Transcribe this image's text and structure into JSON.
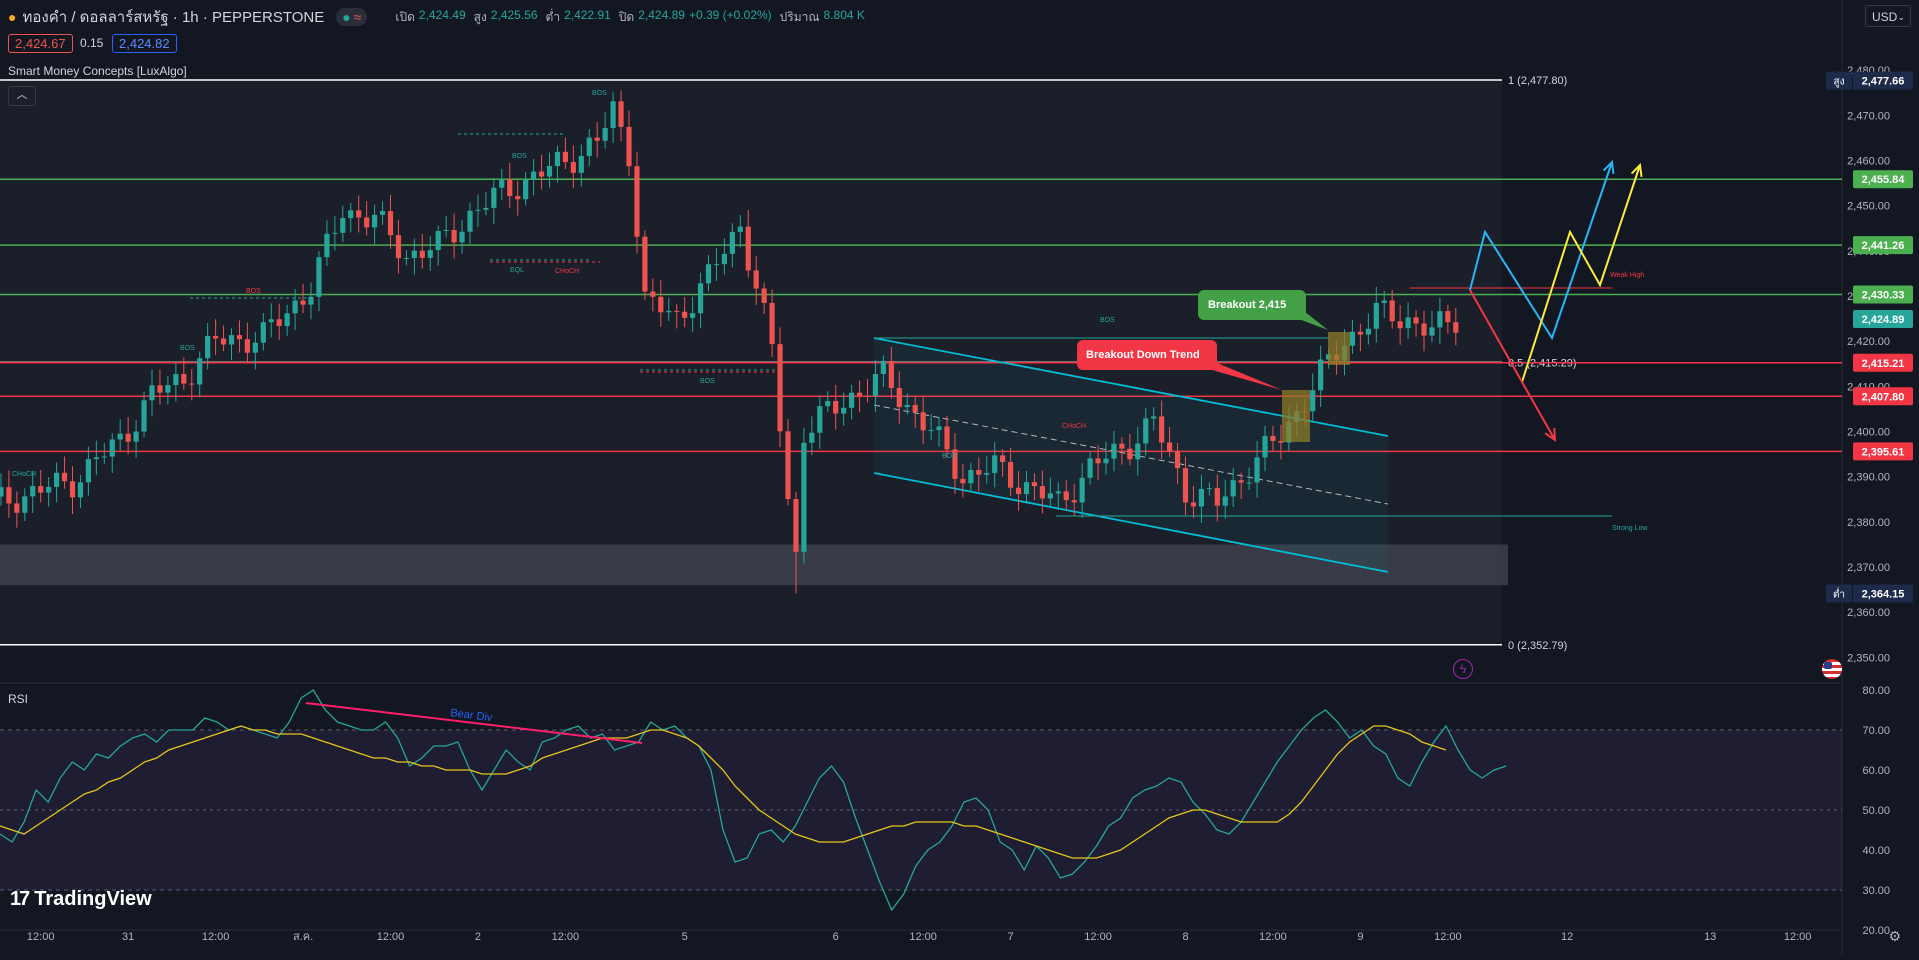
{
  "header": {
    "symbol_icon": "gold-coin-icon",
    "symbol": "ทองคำ / ดอลลาร์สหรัฐ · 1h · PEPPERSTONE",
    "status_icons": [
      "market-open-dot",
      "wave-icon"
    ],
    "open_label": "เปิด",
    "open_value": "2,424.49",
    "high_label": "สูง",
    "high_value": "2,425.56",
    "low_label": "ต่ำ",
    "low_value": "2,422.91",
    "close_label": "ปิด",
    "close_value": "2,424.89",
    "change": "+0.39 (+0.02%)",
    "volume_label": "ปริมาณ",
    "volume_value": "8.804 K"
  },
  "quote": {
    "sell": "2,424.67",
    "spread": "0.15",
    "buy": "2,424.82"
  },
  "currency": "USD",
  "indicator_title": "Smart Money Concepts [LuxAlgo]",
  "rsi_title": "RSI",
  "logo": "TradingView",
  "colors": {
    "background": "#131722",
    "up": "#26a69a",
    "down": "#ef5350",
    "hline_green": "#4caf50",
    "hline_red": "#f23645",
    "channel": "#00bcd4",
    "rsi": "#26a69a",
    "rsi_ma": "#e6c619"
  },
  "chart_data": [
    {
      "type": "candlestick",
      "ylim": [
        2345,
        2484
      ],
      "y_ticks": [
        "2,480.00",
        "2,470.00",
        "2,460.00",
        "2,450.00",
        "2,440.00",
        "2,430.00",
        "2,420.00",
        "2,410.00",
        "2,400.00",
        "2,390.00",
        "2,380.00",
        "2,370.00",
        "2,360.00",
        "2,350.00"
      ],
      "y_tick_values": [
        2480,
        2470,
        2460,
        2450,
        2440,
        2430,
        2420,
        2410,
        2400,
        2390,
        2380,
        2370,
        2360,
        2350
      ],
      "x_ticks": [
        "12:00",
        "31",
        "12:00",
        "ส.ค.",
        "12:00",
        "2",
        "12:00",
        "5",
        "6",
        "12:00",
        "7",
        "12:00",
        "8",
        "12:00",
        "9",
        "12:00",
        "12",
        "13",
        "12:00"
      ],
      "x_tick_bars": [
        6,
        17,
        28,
        39,
        50,
        61,
        72,
        87,
        106,
        117,
        128,
        139,
        150,
        161,
        172,
        183,
        198,
        216,
        227
      ],
      "bars_visible": 190,
      "close_path": [
        [
          0,
          2384
        ],
        [
          10,
          2389
        ],
        [
          16,
          2398
        ],
        [
          20,
          2408
        ],
        [
          24,
          2412
        ],
        [
          28,
          2420
        ],
        [
          34,
          2421
        ],
        [
          40,
          2432
        ],
        [
          44,
          2449
        ],
        [
          48,
          2447
        ],
        [
          52,
          2439
        ],
        [
          56,
          2441
        ],
        [
          60,
          2448
        ],
        [
          64,
          2453
        ],
        [
          70,
          2458
        ],
        [
          76,
          2464
        ],
        [
          78,
          2471
        ],
        [
          80,
          2462
        ],
        [
          82,
          2429
        ],
        [
          86,
          2425
        ],
        [
          90,
          2434
        ],
        [
          94,
          2446
        ],
        [
          96,
          2432
        ],
        [
          98,
          2418
        ],
        [
          100,
          2385
        ],
        [
          101,
          2373
        ],
        [
          102,
          2400
        ],
        [
          108,
          2408
        ],
        [
          112,
          2412
        ],
        [
          118,
          2400
        ],
        [
          122,
          2390
        ],
        [
          126,
          2392
        ],
        [
          130,
          2388
        ],
        [
          134,
          2384
        ],
        [
          138,
          2392
        ],
        [
          142,
          2396
        ],
        [
          146,
          2402
        ],
        [
          150,
          2387
        ],
        [
          154,
          2384
        ],
        [
          158,
          2392
        ],
        [
          162,
          2399
        ],
        [
          166,
          2410
        ],
        [
          170,
          2420
        ],
        [
          174,
          2426
        ],
        [
          178,
          2425
        ],
        [
          181,
          2422
        ],
        [
          184,
          2425
        ]
      ],
      "candle_markers": [
        {
          "bar": 101,
          "low": 2364.15
        }
      ],
      "levels": [
        {
          "label": "1 (2,477.80)",
          "value": 2477.8,
          "color": "#ffffff"
        },
        {
          "label": "0.5 (2,415.29)",
          "value": 2415.29,
          "color": "#ffffff"
        },
        {
          "label": "0 (2,352.79)",
          "value": 2352.79,
          "color": "#ffffff"
        }
      ],
      "horizontal_lines": [
        {
          "value": 2455.84,
          "label": "2,455.84",
          "color": "#4caf50"
        },
        {
          "value": 2441.26,
          "label": "2,441.26",
          "color": "#4caf50"
        },
        {
          "value": 2430.33,
          "label": "2,430.33",
          "color": "#4caf50"
        },
        {
          "value": 2415.21,
          "label": "2,415.21",
          "color": "#f23645"
        },
        {
          "value": 2407.8,
          "label": "2,407.80",
          "color": "#f23645"
        },
        {
          "value": 2395.61,
          "label": "2,395.61",
          "color": "#f23645"
        }
      ],
      "price_tags": [
        {
          "value": 2477.66,
          "label": "2,477.66",
          "prefix": "สูง",
          "color": "#1e2a4a"
        },
        {
          "value": 2424.89,
          "label": "2,424.89",
          "color": "#26a69a"
        },
        {
          "value": 2364.15,
          "label": "2,364.15",
          "prefix": "ต่ำ",
          "color": "#1e2a4a"
        }
      ],
      "annotations": [
        {
          "text": "Breakout 2,415",
          "color": "#43a047"
        },
        {
          "text": "Breakout Down Trend",
          "color": "#f23645"
        }
      ],
      "smc_labels": [
        "BOS",
        "BOS",
        "BOS",
        "BOS",
        "EQL",
        "CHoCH",
        "BOS",
        "BOS",
        "CHoCH",
        "BOS",
        "Weak High",
        "Strong Low",
        "CHoCH"
      ]
    },
    {
      "type": "line",
      "title": "RSI",
      "ylim": [
        20,
        80
      ],
      "y_ticks": [
        "80.00",
        "70.00",
        "60.00",
        "50.00",
        "40.00",
        "30.00",
        "20.00"
      ],
      "y_tick_values": [
        80,
        70,
        60,
        50,
        40,
        30,
        20
      ],
      "bands": [
        30,
        50,
        70
      ],
      "series": [
        {
          "values": [
            44,
            42,
            47,
            55,
            52,
            58,
            62,
            60,
            64,
            63,
            66,
            68,
            69,
            67,
            70,
            70,
            70,
            73,
            72,
            70,
            71,
            70,
            69,
            68,
            72,
            78,
            80,
            75,
            72,
            71,
            70,
            70,
            72,
            68,
            61,
            63,
            66,
            66,
            67,
            60,
            55,
            60,
            65,
            62,
            60,
            67,
            68,
            70,
            71,
            68,
            69,
            65,
            66,
            67,
            72,
            70,
            71,
            68,
            66,
            60,
            45,
            37,
            38,
            44,
            45,
            42,
            46,
            52,
            58,
            61,
            57,
            48,
            40,
            32,
            25,
            29,
            36,
            40,
            42,
            46,
            52,
            53,
            50,
            42,
            40,
            35,
            41,
            38,
            33,
            34,
            37,
            41,
            46,
            48,
            53,
            55,
            56,
            58,
            57,
            52,
            49,
            45,
            44,
            47,
            52,
            57,
            62,
            66,
            70,
            73,
            75,
            72,
            68,
            70,
            66,
            64,
            58,
            56,
            62,
            67,
            71,
            65,
            60,
            58,
            60,
            61
          ]
        },
        {
          "values": [
            46,
            45,
            44,
            46,
            48,
            50,
            52,
            54,
            55,
            57,
            58,
            60,
            62,
            63,
            65,
            66,
            67,
            68,
            69,
            70,
            71,
            70,
            70,
            69,
            69,
            69,
            68,
            67,
            66,
            65,
            64,
            63,
            63,
            62,
            62,
            61,
            61,
            60,
            60,
            60,
            59,
            59,
            59,
            60,
            61,
            63,
            64,
            65,
            66,
            67,
            68,
            68,
            68,
            69,
            70,
            70,
            69,
            68,
            66,
            63,
            60,
            56,
            53,
            50,
            48,
            46,
            44,
            43,
            42,
            42,
            42,
            43,
            44,
            45,
            46,
            46,
            47,
            47,
            47,
            47,
            46,
            46,
            45,
            44,
            43,
            42,
            41,
            40,
            39,
            38,
            38,
            38,
            39,
            40,
            42,
            44,
            46,
            48,
            49,
            50,
            50,
            49,
            48,
            47,
            47,
            47,
            47,
            49,
            52,
            56,
            60,
            64,
            67,
            69,
            71,
            71,
            70,
            69,
            67,
            66,
            65
          ]
        }
      ],
      "annotation": "Bear Div"
    }
  ]
}
